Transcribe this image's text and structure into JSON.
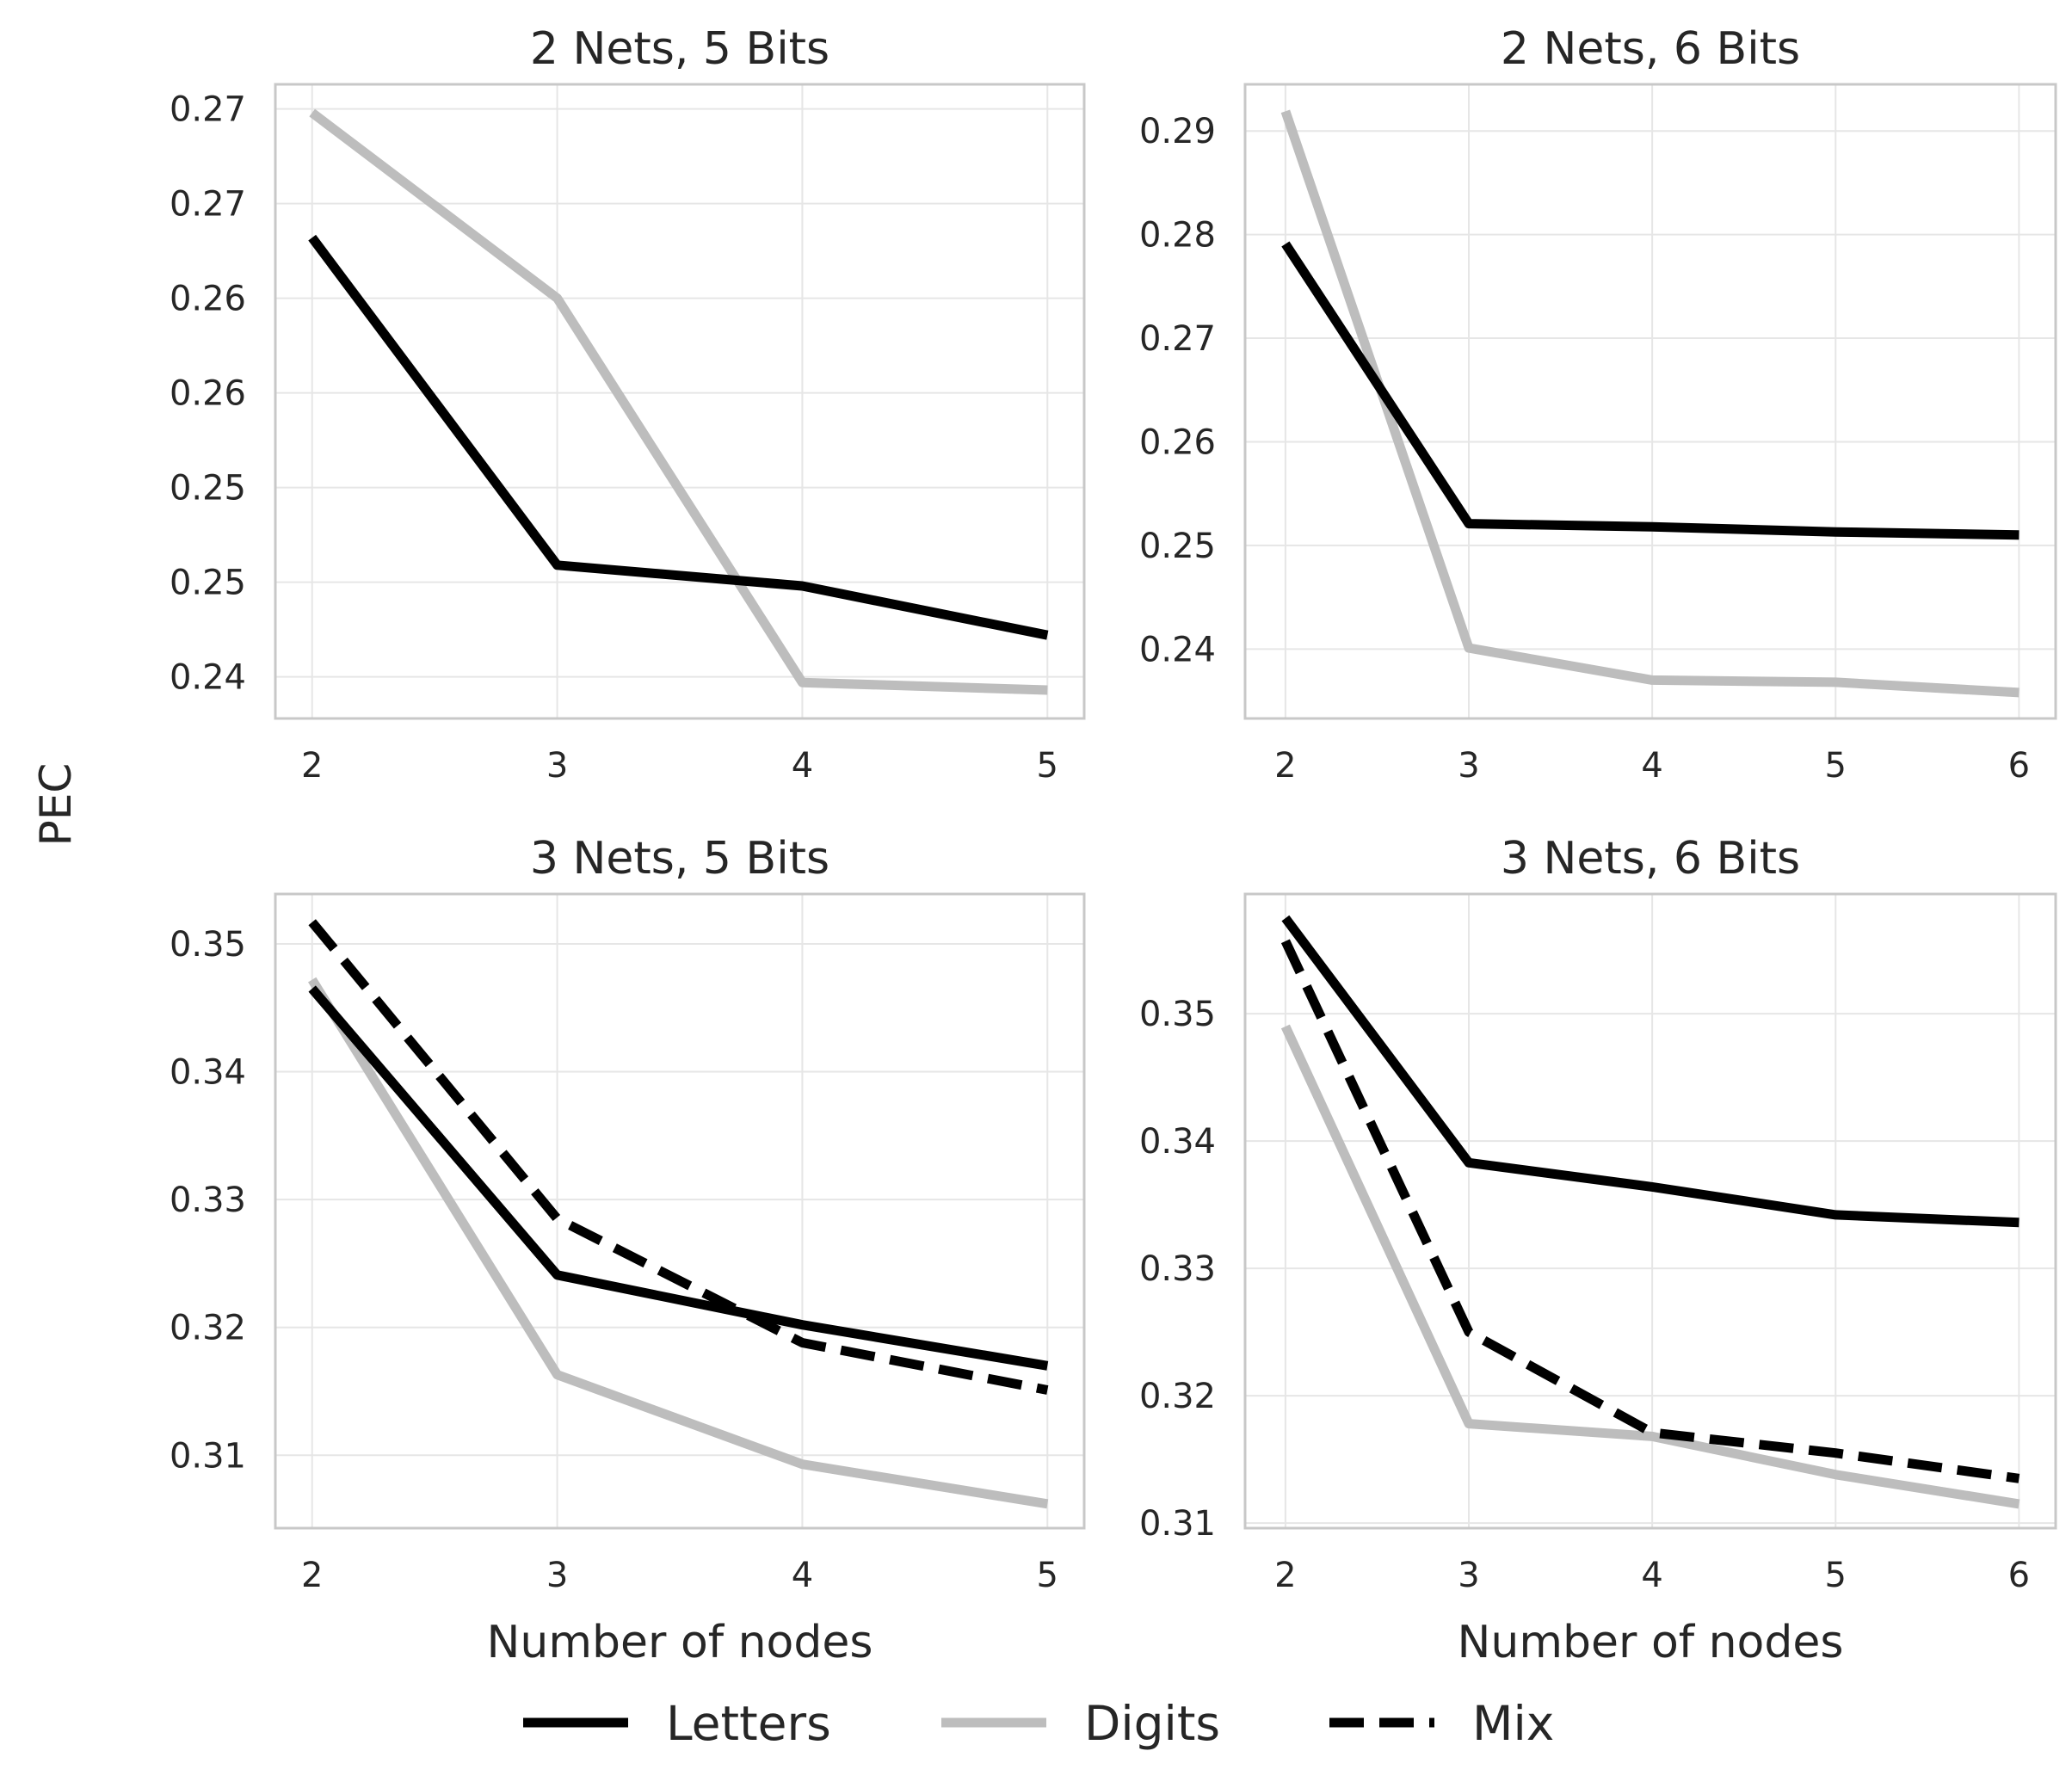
{
  "figure": {
    "ylabel": "PEC",
    "legend": {
      "placement": "bottom-center",
      "entries": [
        {
          "label": "Letters",
          "color": "#000000",
          "style": "solid"
        },
        {
          "label": "Digits",
          "color": "#bdbdbd",
          "style": "solid"
        },
        {
          "label": "Mix",
          "color": "#000000",
          "style": "dashed"
        }
      ]
    }
  },
  "chart_data": [
    {
      "type": "line",
      "title": "2 Nets, 5 Bits",
      "xlabel": "",
      "ylabel": "",
      "x": [
        2,
        3,
        4,
        5
      ],
      "xticks": [
        "2",
        "3",
        "4",
        "5"
      ],
      "ylim": [
        0.2378,
        0.2713
      ],
      "yticks": [
        {
          "value": 0.24,
          "label": "0.24"
        },
        {
          "value": 0.245,
          "label": "0.25"
        },
        {
          "value": 0.25,
          "label": "0.25"
        },
        {
          "value": 0.255,
          "label": "0.26"
        },
        {
          "value": 0.26,
          "label": "0.26"
        },
        {
          "value": 0.265,
          "label": "0.27"
        },
        {
          "value": 0.27,
          "label": "0.27"
        }
      ],
      "grid": true,
      "series": [
        {
          "name": "Letters",
          "values": [
            0.2632,
            0.2459,
            0.2448,
            0.2422
          ]
        },
        {
          "name": "Digits",
          "values": [
            0.2698,
            0.26,
            0.2397,
            0.2393
          ]
        }
      ]
    },
    {
      "type": "line",
      "title": "2 Nets, 6 Bits",
      "xlabel": "",
      "ylabel": "",
      "x": [
        2,
        3,
        4,
        5,
        6
      ],
      "xticks": [
        "2",
        "3",
        "4",
        "5",
        "6"
      ],
      "ylim": [
        0.2333,
        0.2945
      ],
      "yticks": [
        {
          "value": 0.24,
          "label": "0.24"
        },
        {
          "value": 0.25,
          "label": "0.25"
        },
        {
          "value": 0.26,
          "label": "0.26"
        },
        {
          "value": 0.27,
          "label": "0.27"
        },
        {
          "value": 0.28,
          "label": "0.28"
        },
        {
          "value": 0.29,
          "label": "0.29"
        }
      ],
      "grid": true,
      "series": [
        {
          "name": "Letters",
          "values": [
            0.2791,
            0.2521,
            0.2518,
            0.2513,
            0.251
          ]
        },
        {
          "name": "Digits",
          "values": [
            0.2919,
            0.2401,
            0.237,
            0.2368,
            0.2358
          ]
        }
      ]
    },
    {
      "type": "line",
      "title": "3 Nets, 5 Bits",
      "xlabel": "Number of nodes",
      "ylabel": "",
      "x": [
        2,
        3,
        4,
        5
      ],
      "xticks": [
        "2",
        "3",
        "4",
        "5"
      ],
      "ylim": [
        0.3043,
        0.3539
      ],
      "yticks": [
        {
          "value": 0.31,
          "label": "0.31"
        },
        {
          "value": 0.32,
          "label": "0.32"
        },
        {
          "value": 0.33,
          "label": "0.33"
        },
        {
          "value": 0.34,
          "label": "0.34"
        },
        {
          "value": 0.35,
          "label": "0.35"
        }
      ],
      "grid": true,
      "series": [
        {
          "name": "Letters",
          "values": [
            0.3465,
            0.3241,
            0.3202,
            0.317
          ]
        },
        {
          "name": "Digits",
          "values": [
            0.3472,
            0.3163,
            0.3093,
            0.3062
          ]
        },
        {
          "name": "Mix",
          "values": [
            0.3517,
            0.3285,
            0.3188,
            0.3151
          ]
        }
      ]
    },
    {
      "type": "line",
      "title": "3 Nets, 6 Bits",
      "xlabel": "Number of nodes",
      "ylabel": "",
      "x": [
        2,
        3,
        4,
        5,
        6
      ],
      "xticks": [
        "2",
        "3",
        "4",
        "5",
        "6"
      ],
      "ylim": [
        0.3096,
        0.3594
      ],
      "yticks": [
        {
          "value": 0.31,
          "label": "0.31"
        },
        {
          "value": 0.32,
          "label": "0.32"
        },
        {
          "value": 0.33,
          "label": "0.33"
        },
        {
          "value": 0.34,
          "label": "0.34"
        },
        {
          "value": 0.35,
          "label": "0.35"
        }
      ],
      "grid": true,
      "series": [
        {
          "name": "Letters",
          "values": [
            0.3575,
            0.3383,
            0.3364,
            0.3342,
            0.3336
          ]
        },
        {
          "name": "Digits",
          "values": [
            0.349,
            0.3178,
            0.3168,
            0.3138,
            0.3115
          ]
        },
        {
          "name": "Mix",
          "values": [
            0.3557,
            0.325,
            0.3171,
            0.3155,
            0.3135
          ]
        }
      ]
    }
  ]
}
